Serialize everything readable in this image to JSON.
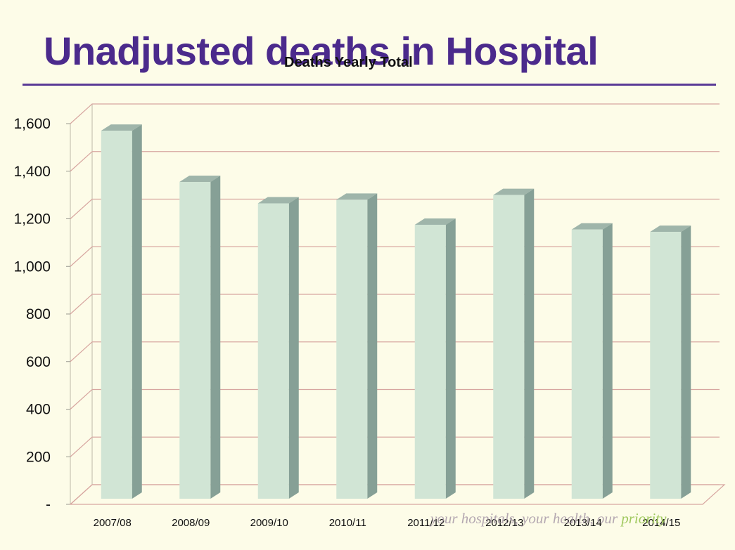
{
  "slide": {
    "title": "Unadjusted deaths in Hospital",
    "footer_tagline_main": "your hospitals, your health, our ",
    "footer_tagline_accent": "priority"
  },
  "colors": {
    "title": "#4b2a8c",
    "rule": "#5a3a96",
    "background": "#fdfce8",
    "gridline": "#d7a6a0",
    "bar_front": "#d1e5d5",
    "bar_side": "#86a096",
    "bar_top": "#9fb5aa"
  },
  "chart_data": {
    "type": "bar",
    "title": "Deaths Yearly Total",
    "categories": [
      "2007/08",
      "2008/09",
      "2009/10",
      "2010/11",
      "2011/12",
      "2012/13",
      "2013/14",
      "2014/15"
    ],
    "series": [
      {
        "values": [
          1570,
          1355,
          1265,
          1280,
          1175,
          1300,
          1155,
          1145
        ]
      }
    ],
    "ylim": [
      0,
      1600
    ],
    "yticks": [
      0,
      200,
      400,
      600,
      800,
      1000,
      1200,
      1400,
      1600
    ],
    "ytick_labels": [
      "-",
      "200",
      "400",
      "600",
      "800",
      "1,000",
      "1,200",
      "1,400",
      "1,600"
    ],
    "xlabel": "",
    "ylabel": "",
    "grid": true,
    "legend": "none",
    "style": "3d-column"
  }
}
